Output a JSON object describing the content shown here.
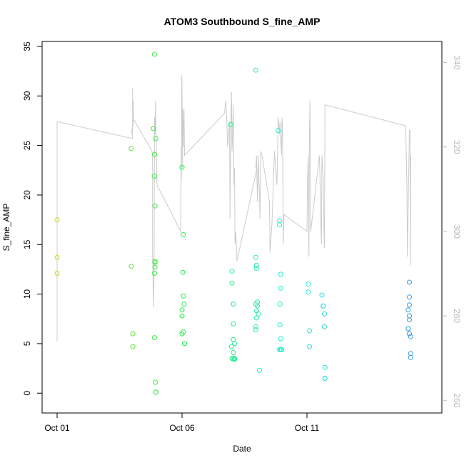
{
  "chart_data": {
    "type": "scatter",
    "title": "ATOM3 Southbound S_fine_AMP",
    "xlabel": "Date",
    "ylabel": "S_fine_AMP",
    "xlim_days": [
      0,
      14.8
    ],
    "ylim": [
      -2,
      35.5
    ],
    "y2lim": [
      257,
      345
    ],
    "x_ticks": [
      {
        "value": 0,
        "label": "Oct 01"
      },
      {
        "value": 5,
        "label": "Oct 06"
      },
      {
        "value": 10,
        "label": "Oct 11"
      }
    ],
    "y_ticks": [
      0,
      5,
      10,
      15,
      20,
      25,
      30,
      35
    ],
    "y2_ticks": [
      260,
      280,
      300,
      320,
      340
    ],
    "grid": false,
    "legend": "none",
    "colors": {
      "line": "#cccccc",
      "axis": "#000000",
      "axis2": "#bbbbbb",
      "color_ramp": [
        "#b4e61e",
        "#22ee44",
        "#22eedd",
        "#3399dd"
      ]
    },
    "series": [
      {
        "kind": "scatter",
        "x": [
          0.0,
          0.0,
          0.0,
          2.97,
          2.97,
          3.03,
          3.03,
          3.9,
          3.85,
          3.95,
          3.9,
          3.9,
          3.92,
          3.92,
          3.92,
          3.92,
          3.9,
          3.9,
          3.93,
          3.95,
          3.95,
          5.0,
          5.05,
          5.03,
          5.05,
          5.08,
          5.0,
          5.0,
          5.0,
          5.05,
          5.1,
          5.1,
          6.95,
          7.0,
          7.0,
          7.05,
          7.05,
          7.05,
          6.98,
          7.1,
          7.05,
          7.05,
          7.1,
          7.0,
          7.1,
          8.85,
          8.9,
          8.9,
          8.95,
          8.95,
          8.92,
          8.92,
          8.95,
          8.9,
          8.98,
          8.98,
          8.98,
          8.98,
          8.97,
          8.95,
          7.95,
          7.95,
          7.98,
          7.98,
          7.95,
          8.02,
          8.02,
          7.98,
          7.98,
          8.05,
          7.95,
          7.95,
          8.1,
          10.05,
          10.05,
          10.1,
          10.1,
          10.6,
          10.65,
          10.65,
          10.7,
          10.7,
          10.72,
          10.72,
          10.72,
          14.1,
          14.1,
          14.1,
          14.05,
          14.1,
          14.1,
          14.05,
          14.15,
          14.1,
          14.15,
          14.15
        ],
        "y": [
          17.5,
          13.7,
          12.1,
          24.7,
          12.8,
          6.0,
          4.7,
          34.2,
          26.7,
          25.7,
          24.1,
          21.9,
          18.9,
          13.3,
          13.2,
          12.7,
          12.1,
          5.6,
          1.1,
          0.1,
          0.1,
          22.8,
          16.0,
          12.2,
          9.8,
          9.0,
          8.4,
          7.8,
          6.0,
          6.2,
          5.0,
          5.0,
          27.1,
          12.3,
          11.1,
          9.0,
          7.0,
          5.4,
          4.7,
          5.0,
          4.1,
          3.5,
          3.5,
          3.5,
          3.4,
          26.5,
          17.4,
          17.0,
          12.0,
          10.6,
          9.0,
          6.9,
          5.5,
          4.4,
          4.4,
          4.4,
          4.4,
          4.4,
          4.4,
          4.4,
          32.6,
          13.7,
          12.9,
          12.6,
          9.0,
          9.2,
          8.8,
          8.3,
          7.6,
          8.0,
          6.7,
          6.4,
          2.3,
          11.0,
          10.2,
          6.3,
          4.7,
          9.9,
          8.8,
          8.8,
          8.0,
          6.7,
          2.6,
          1.5,
          1.5,
          11.2,
          9.7,
          8.9,
          8.4,
          7.8,
          7.4,
          6.5,
          5.7,
          6.0,
          4.0,
          3.6
        ]
      },
      {
        "kind": "line",
        "axis": "right",
        "x": [
          0.0,
          0.0,
          0.0,
          3.02,
          3.02,
          3.02,
          3.05,
          2.98,
          3.05,
          3.05,
          3.02,
          3.8,
          3.82,
          3.82,
          3.86,
          3.88,
          3.9,
          3.92,
          3.94,
          3.98,
          4.0,
          4.95,
          4.96,
          4.97,
          4.98,
          4.99,
          5.0,
          5.02,
          5.03,
          5.05,
          5.06,
          5.08,
          5.1,
          6.7,
          6.75,
          6.8,
          6.82,
          6.85,
          6.9,
          6.92,
          6.95,
          6.98,
          7.0,
          7.02,
          7.05,
          7.08,
          7.1,
          7.12,
          7.15,
          7.2,
          8.0,
          7.95,
          7.98,
          8.0,
          8.02,
          8.05,
          8.08,
          8.1,
          8.12,
          8.15,
          8.2,
          8.5,
          8.52,
          8.6,
          8.7,
          8.8,
          8.85,
          8.9,
          8.92,
          8.95,
          8.98,
          9.0,
          9.02,
          9.05,
          9.08,
          10.0,
          10.02,
          10.05,
          10.08,
          10.1,
          10.12,
          10.1,
          10.12,
          10.15,
          10.5,
          10.52,
          10.55,
          10.58,
          10.6,
          10.65,
          10.68,
          10.7,
          10.72,
          10.72,
          13.95,
          14.0,
          14.02,
          14.05,
          14.08,
          14.1,
          14.12,
          14.15,
          14.15
        ],
        "y": [
          274,
          322,
          326,
          322,
          334,
          325,
          327,
          323,
          326,
          331,
          327,
          319,
          316,
          294,
          282,
          291,
          327,
          323,
          331,
          317,
          311,
          300,
          320,
          312,
          318,
          337,
          334,
          315,
          329,
          320,
          324,
          329,
          318,
          328,
          331,
          325,
          320,
          322,
          326,
          303,
          325,
          333,
          319,
          322,
          330,
          311,
          315,
          297,
          300,
          293,
          315,
          315,
          318,
          312,
          307,
          318,
          312,
          309,
          303,
          319,
          318,
          307,
          295,
          302,
          319,
          311,
          327,
          323,
          326,
          322,
          318,
          327,
          325,
          297,
          304,
          300,
          312,
          318,
          294,
          323,
          326,
          323,
          331,
          300,
          318,
          313,
          303,
          297,
          318,
          313,
          301,
          296,
          325,
          330,
          325,
          311,
          294,
          306,
          316,
          324,
          324,
          292,
          318
        ]
      }
    ]
  }
}
